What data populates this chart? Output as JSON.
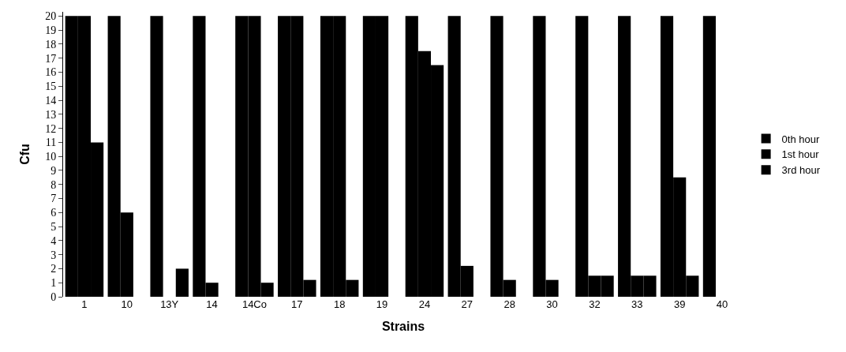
{
  "chart_data": {
    "type": "bar",
    "xlabel": "Strains",
    "ylabel": "Cfu",
    "categories": [
      "1",
      "10",
      "13Y",
      "14",
      "14Co",
      "17",
      "18",
      "19",
      "24",
      "27",
      "28",
      "30",
      "32",
      "33",
      "39",
      "40"
    ],
    "series": [
      {
        "name": "0th hour",
        "color": "#000000",
        "values": [
          20,
          20,
          20,
          20,
          20,
          20,
          20,
          20,
          20,
          20,
          20,
          20,
          20,
          20,
          20,
          20
        ]
      },
      {
        "name": "1st hour",
        "color": "#000000",
        "values": [
          20,
          6,
          0,
          1,
          20,
          20,
          20,
          20,
          17.5,
          2.2,
          1.2,
          1.2,
          1.5,
          1.5,
          8.5,
          0
        ]
      },
      {
        "name": "3rd hour",
        "color": "#000000",
        "values": [
          11,
          0,
          2,
          0,
          1,
          1.2,
          1.2,
          0,
          16.5,
          0,
          0,
          0,
          1.5,
          1.5,
          1.5,
          0
        ]
      }
    ],
    "ylim": [
      0,
      20.3
    ],
    "yticks": [
      0,
      1,
      2,
      3,
      4,
      5,
      6,
      7,
      8,
      9,
      10,
      11,
      12,
      13,
      14,
      15,
      16,
      17,
      18,
      19,
      20
    ],
    "legend": "right"
  }
}
